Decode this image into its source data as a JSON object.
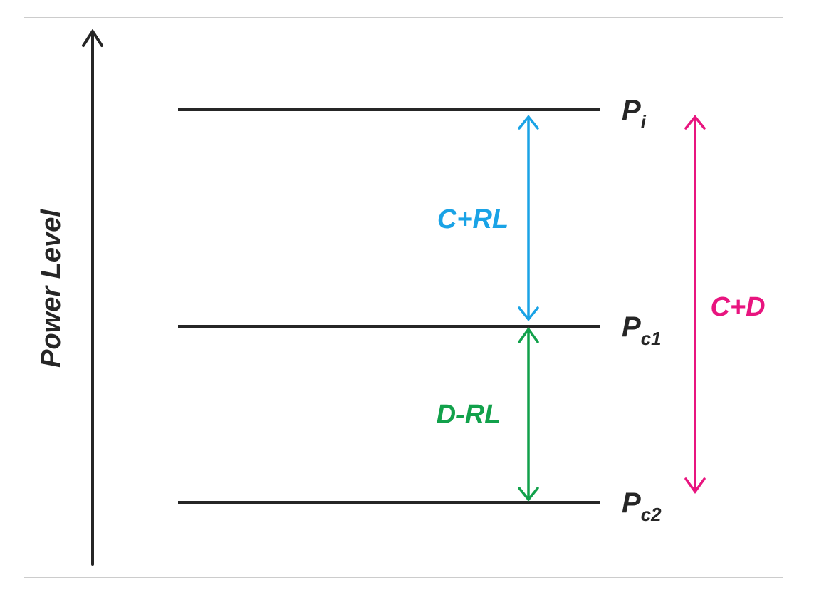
{
  "axis_label": "Power Level",
  "levels": [
    {
      "main": "P",
      "sub": "i"
    },
    {
      "main": "P",
      "sub": "c1"
    },
    {
      "main": "P",
      "sub": "c2"
    }
  ],
  "spans": [
    {
      "label": "C+RL",
      "from": "Pi",
      "to": "Pc1",
      "color": "#1aa3e6"
    },
    {
      "label": "D-RL",
      "from": "Pc1",
      "to": "Pc2",
      "color": "#12a14b"
    },
    {
      "label": "C+D",
      "from": "Pi",
      "to": "Pc2",
      "color": "#e8157f"
    }
  ],
  "colors": {
    "line": "#262626",
    "frame": "#cccccc"
  }
}
